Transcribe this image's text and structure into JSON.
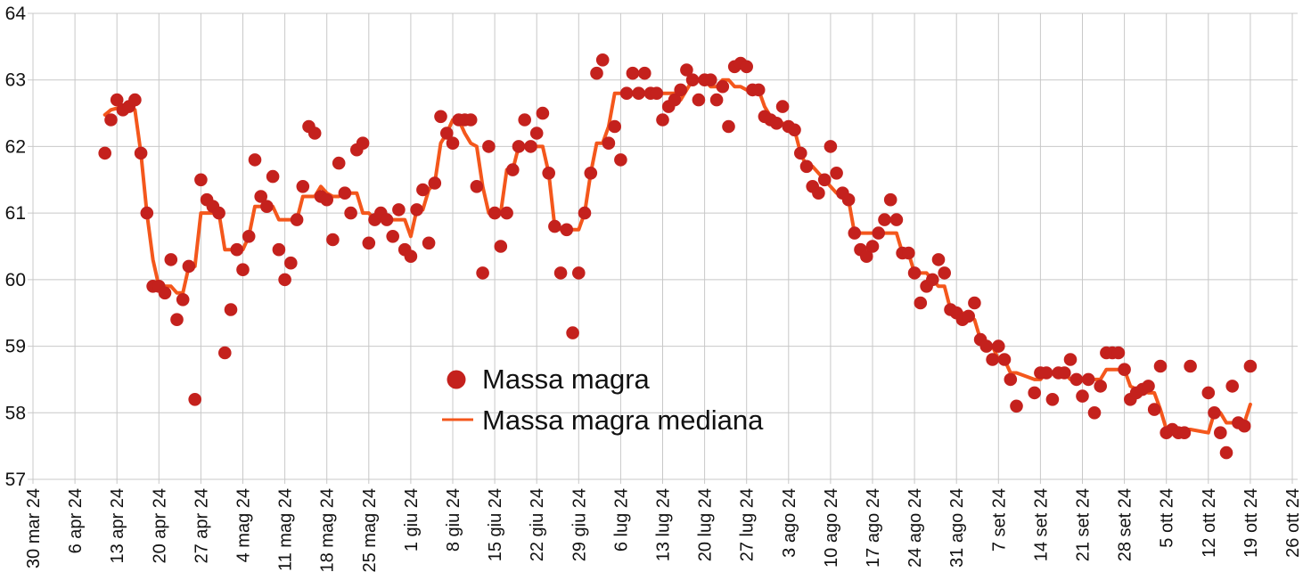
{
  "chart_data": {
    "type": "scatter",
    "title": "",
    "xlabel": "",
    "ylabel": "",
    "grid": true,
    "background": "#ffffff",
    "grid_color": "#c8c8c8",
    "text_color": "#111111",
    "x_axis": {
      "unit": "days since 30 mar 24",
      "first_tick_label": "30 mar 24",
      "tick_interval_days": 7,
      "tick_labels": [
        "30 mar 24",
        "6 apr 24",
        "13 apr 24",
        "20 apr 24",
        "27 apr 24",
        "4 mag 24",
        "11 mag 24",
        "18 mag 24",
        "25 mag 24",
        "1 giu 24",
        "8 giu 24",
        "15 giu 24",
        "22 giu 24",
        "29 giu 24",
        "6 lug 24",
        "13 lug 24",
        "20 lug 24",
        "27 lug 24",
        "3 ago 24",
        "10 ago 24",
        "17 ago 24",
        "24 ago 24",
        "31 ago 24",
        "7 set 24",
        "14 set 24",
        "21 set 24",
        "28 set 24",
        "5 ott 24",
        "12 ott 24",
        "19 ott 24",
        "26 ott 24"
      ]
    },
    "y_axis": {
      "min": 57,
      "max": 64,
      "tick_step": 1,
      "tick_labels": [
        "57",
        "58",
        "59",
        "60",
        "61",
        "62",
        "63",
        "64"
      ]
    },
    "legend": {
      "position": "center-bottom",
      "items": [
        "Massa magra",
        "Massa magra mediana"
      ]
    },
    "series": [
      {
        "name": "Massa magra",
        "type": "scatter",
        "color": "#c4211d",
        "marker_radius": 7.3,
        "points_format": "[days since 30 mar 24, kg]",
        "points": [
          [
            12,
            61.9
          ],
          [
            13,
            62.4
          ],
          [
            14,
            62.7
          ],
          [
            15,
            62.55
          ],
          [
            16,
            62.6
          ],
          [
            17,
            62.7
          ],
          [
            18,
            61.9
          ],
          [
            19,
            61.0
          ],
          [
            20,
            59.9
          ],
          [
            21,
            59.9
          ],
          [
            22,
            59.8
          ],
          [
            23,
            60.3
          ],
          [
            24,
            59.4
          ],
          [
            25,
            59.7
          ],
          [
            26,
            60.2
          ],
          [
            27,
            58.2
          ],
          [
            28,
            61.5
          ],
          [
            29,
            61.2
          ],
          [
            30,
            61.1
          ],
          [
            31,
            61.0
          ],
          [
            32,
            58.9
          ],
          [
            33,
            59.55
          ],
          [
            34,
            60.45
          ],
          [
            35,
            60.15
          ],
          [
            36,
            60.65
          ],
          [
            37,
            61.8
          ],
          [
            38,
            61.25
          ],
          [
            39,
            61.1
          ],
          [
            40,
            61.55
          ],
          [
            41,
            60.45
          ],
          [
            42,
            60.0
          ],
          [
            43,
            60.25
          ],
          [
            44,
            60.9
          ],
          [
            45,
            61.4
          ],
          [
            46,
            62.3
          ],
          [
            47,
            62.2
          ],
          [
            48,
            61.25
          ],
          [
            49,
            61.2
          ],
          [
            50,
            60.6
          ],
          [
            51,
            61.75
          ],
          [
            52,
            61.3
          ],
          [
            53,
            61.0
          ],
          [
            54,
            61.95
          ],
          [
            55,
            62.05
          ],
          [
            56,
            60.55
          ],
          [
            57,
            60.9
          ],
          [
            58,
            61.0
          ],
          [
            59,
            60.9
          ],
          [
            60,
            60.65
          ],
          [
            61,
            61.05
          ],
          [
            62,
            60.45
          ],
          [
            63,
            60.35
          ],
          [
            64,
            61.05
          ],
          [
            65,
            61.35
          ],
          [
            66,
            60.55
          ],
          [
            67,
            61.45
          ],
          [
            68,
            62.45
          ],
          [
            69,
            62.2
          ],
          [
            70,
            62.05
          ],
          [
            71,
            62.4
          ],
          [
            72,
            62.4
          ],
          [
            73,
            62.4
          ],
          [
            74,
            61.4
          ],
          [
            75,
            60.1
          ],
          [
            76,
            62.0
          ],
          [
            77,
            61.0
          ],
          [
            78,
            60.5
          ],
          [
            79,
            61.0
          ],
          [
            80,
            61.65
          ],
          [
            81,
            62.0
          ],
          [
            82,
            62.4
          ],
          [
            83,
            62.0
          ],
          [
            84,
            62.2
          ],
          [
            85,
            62.5
          ],
          [
            86,
            61.6
          ],
          [
            87,
            60.8
          ],
          [
            88,
            60.1
          ],
          [
            89,
            60.75
          ],
          [
            90,
            59.2
          ],
          [
            91,
            60.1
          ],
          [
            92,
            61.0
          ],
          [
            93,
            61.6
          ],
          [
            94,
            63.1
          ],
          [
            95,
            63.3
          ],
          [
            96,
            62.05
          ],
          [
            97,
            62.3
          ],
          [
            98,
            61.8
          ],
          [
            99,
            62.8
          ],
          [
            100,
            63.1
          ],
          [
            101,
            62.8
          ],
          [
            102,
            63.1
          ],
          [
            103,
            62.8
          ],
          [
            104,
            62.8
          ],
          [
            105,
            62.4
          ],
          [
            106,
            62.6
          ],
          [
            107,
            62.7
          ],
          [
            108,
            62.85
          ],
          [
            109,
            63.15
          ],
          [
            110,
            63.0
          ],
          [
            111,
            62.7
          ],
          [
            112,
            63.0
          ],
          [
            113,
            63.0
          ],
          [
            114,
            62.7
          ],
          [
            115,
            62.9
          ],
          [
            116,
            62.3
          ],
          [
            117,
            63.2
          ],
          [
            118,
            63.25
          ],
          [
            119,
            63.2
          ],
          [
            120,
            62.85
          ],
          [
            121,
            62.85
          ],
          [
            122,
            62.45
          ],
          [
            123,
            62.4
          ],
          [
            124,
            62.35
          ],
          [
            125,
            62.6
          ],
          [
            126,
            62.3
          ],
          [
            127,
            62.25
          ],
          [
            128,
            61.9
          ],
          [
            129,
            61.7
          ],
          [
            130,
            61.4
          ],
          [
            131,
            61.3
          ],
          [
            132,
            61.5
          ],
          [
            133,
            62.0
          ],
          [
            134,
            61.6
          ],
          [
            135,
            61.3
          ],
          [
            136,
            61.2
          ],
          [
            137,
            60.7
          ],
          [
            138,
            60.45
          ],
          [
            139,
            60.35
          ],
          [
            140,
            60.5
          ],
          [
            141,
            60.7
          ],
          [
            142,
            60.9
          ],
          [
            143,
            61.2
          ],
          [
            144,
            60.9
          ],
          [
            145,
            60.4
          ],
          [
            146,
            60.4
          ],
          [
            147,
            60.1
          ],
          [
            148,
            59.65
          ],
          [
            149,
            59.9
          ],
          [
            150,
            60.0
          ],
          [
            151,
            60.3
          ],
          [
            152,
            60.1
          ],
          [
            153,
            59.55
          ],
          [
            154,
            59.5
          ],
          [
            155,
            59.4
          ],
          [
            156,
            59.45
          ],
          [
            157,
            59.65
          ],
          [
            158,
            59.1
          ],
          [
            159,
            59.0
          ],
          [
            160,
            58.8
          ],
          [
            161,
            59.0
          ],
          [
            162,
            58.8
          ],
          [
            163,
            58.5
          ],
          [
            164,
            58.1
          ],
          [
            167,
            58.3
          ],
          [
            168,
            58.6
          ],
          [
            169,
            58.6
          ],
          [
            170,
            58.2
          ],
          [
            171,
            58.6
          ],
          [
            172,
            58.6
          ],
          [
            173,
            58.8
          ],
          [
            174,
            58.5
          ],
          [
            175,
            58.25
          ],
          [
            176,
            58.5
          ],
          [
            177,
            58.0
          ],
          [
            178,
            58.4
          ],
          [
            179,
            58.9
          ],
          [
            180,
            58.9
          ],
          [
            181,
            58.9
          ],
          [
            182,
            58.65
          ],
          [
            183,
            58.2
          ],
          [
            184,
            58.3
          ],
          [
            185,
            58.35
          ],
          [
            186,
            58.4
          ],
          [
            187,
            58.05
          ],
          [
            188,
            58.7
          ],
          [
            189,
            57.7
          ],
          [
            190,
            57.75
          ],
          [
            191,
            57.7
          ],
          [
            192,
            57.7
          ],
          [
            193,
            58.7
          ],
          [
            196,
            58.3
          ],
          [
            197,
            58.0
          ],
          [
            198,
            57.7
          ],
          [
            199,
            57.4
          ],
          [
            200,
            58.4
          ],
          [
            201,
            57.85
          ],
          [
            202,
            57.8
          ],
          [
            203,
            58.7
          ]
        ]
      },
      {
        "name": "Massa magra mediana",
        "type": "line",
        "color": "#f4571c",
        "line_width": 4,
        "derivation": "rolling median of Massa magra, window 7, centered"
      }
    ]
  }
}
